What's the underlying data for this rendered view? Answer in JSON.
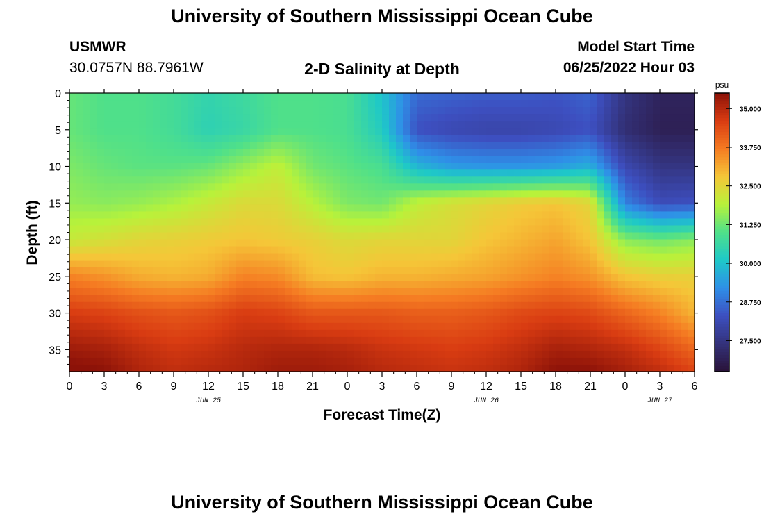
{
  "page": {
    "main_title": "University of Southern Mississippi Ocean Cube",
    "footer_title": "University of Southern Mississippi Ocean Cube",
    "station_id": "USMWR",
    "station_coords": "30.0757N  88.7961W",
    "center_title": "2-D Salinity at Depth",
    "model_start_label": "Model Start Time",
    "model_start_value": "06/25/2022 Hour 03"
  },
  "chart_data": {
    "type": "heatmap",
    "title": "2-D Salinity at Depth",
    "xlabel": "Forecast Time(Z)",
    "ylabel": "Depth (ft)",
    "x_ticks": [
      "0",
      "3",
      "6",
      "9",
      "12",
      "15",
      "18",
      "21",
      "0",
      "3",
      "6",
      "9",
      "12",
      "15",
      "18",
      "21",
      "0",
      "3",
      "6"
    ],
    "x_range_hours": [
      0,
      54
    ],
    "date_labels": [
      {
        "text": "JUN 25",
        "hour": 12
      },
      {
        "text": "JUN 26",
        "hour": 36
      },
      {
        "text": "JUN 27",
        "hour": 51
      }
    ],
    "y_ticks": [
      0,
      5,
      10,
      15,
      20,
      25,
      30,
      35
    ],
    "y_range": [
      0,
      38
    ],
    "y_inverted": true,
    "colorbar": {
      "unit": "psu",
      "ticks": [
        "35.000",
        "33.750",
        "32.500",
        "31.250",
        "30.000",
        "28.750",
        "27.500"
      ],
      "range": [
        26.5,
        35.5
      ],
      "colors": [
        "#2a1238",
        "#33327a",
        "#3d4fc0",
        "#2f8fe8",
        "#1ec8c8",
        "#4fe08a",
        "#b8f23a",
        "#f5c638",
        "#f57b22",
        "#d93c12",
        "#8c1208"
      ]
    },
    "time_hours": [
      0,
      3,
      6,
      9,
      12,
      15,
      18,
      21,
      24,
      27,
      30,
      33,
      36,
      39,
      42,
      45,
      48,
      51,
      54
    ],
    "depth_ft": [
      0,
      5,
      10,
      15,
      20,
      25,
      30,
      35,
      38
    ],
    "salinity_psu": [
      [
        31.2,
        31.0,
        31.0,
        30.8,
        30.5,
        30.7,
        31.0,
        31.0,
        30.9,
        30.0,
        28.7,
        28.6,
        28.5,
        28.5,
        28.4,
        28.6,
        27.5,
        27.0,
        27.0
      ],
      [
        31.2,
        31.0,
        31.0,
        30.8,
        30.4,
        30.6,
        31.0,
        31.0,
        30.9,
        30.2,
        28.3,
        28.1,
        28.0,
        28.0,
        28.1,
        28.3,
        27.3,
        26.9,
        26.9
      ],
      [
        31.4,
        31.2,
        31.1,
        31.1,
        31.2,
        31.6,
        32.0,
        31.3,
        31.1,
        30.9,
        29.8,
        29.4,
        29.3,
        29.3,
        29.4,
        29.7,
        28.1,
        27.5,
        27.5
      ],
      [
        31.6,
        31.5,
        31.6,
        31.8,
        32.1,
        32.4,
        32.4,
        31.9,
        31.4,
        31.3,
        32.0,
        32.3,
        32.5,
        32.7,
        32.8,
        32.5,
        29.0,
        28.2,
        28.3
      ],
      [
        32.1,
        32.3,
        32.5,
        32.6,
        32.7,
        32.8,
        32.7,
        32.6,
        32.4,
        32.5,
        32.5,
        32.5,
        32.8,
        33.0,
        33.2,
        32.8,
        31.5,
        31.3,
        31.5
      ],
      [
        33.6,
        33.4,
        33.1,
        33.0,
        33.1,
        33.6,
        33.5,
        32.9,
        32.8,
        33.0,
        33.0,
        33.1,
        33.2,
        33.4,
        33.6,
        33.4,
        32.8,
        32.6,
        32.6
      ],
      [
        34.6,
        34.5,
        34.3,
        34.2,
        34.3,
        34.6,
        34.5,
        34.2,
        34.2,
        34.2,
        34.1,
        34.1,
        34.2,
        34.4,
        34.5,
        34.4,
        34.0,
        33.6,
        33.0
      ],
      [
        35.3,
        35.2,
        34.9,
        34.7,
        34.8,
        35.0,
        35.1,
        35.1,
        35.0,
        34.8,
        34.7,
        34.6,
        34.7,
        34.9,
        35.2,
        35.1,
        34.9,
        34.5,
        34.0
      ],
      [
        35.6,
        35.5,
        35.1,
        34.9,
        35.0,
        35.1,
        35.3,
        35.3,
        35.2,
        35.0,
        34.9,
        34.8,
        34.9,
        35.1,
        35.5,
        35.5,
        35.2,
        34.9,
        34.5
      ]
    ]
  }
}
